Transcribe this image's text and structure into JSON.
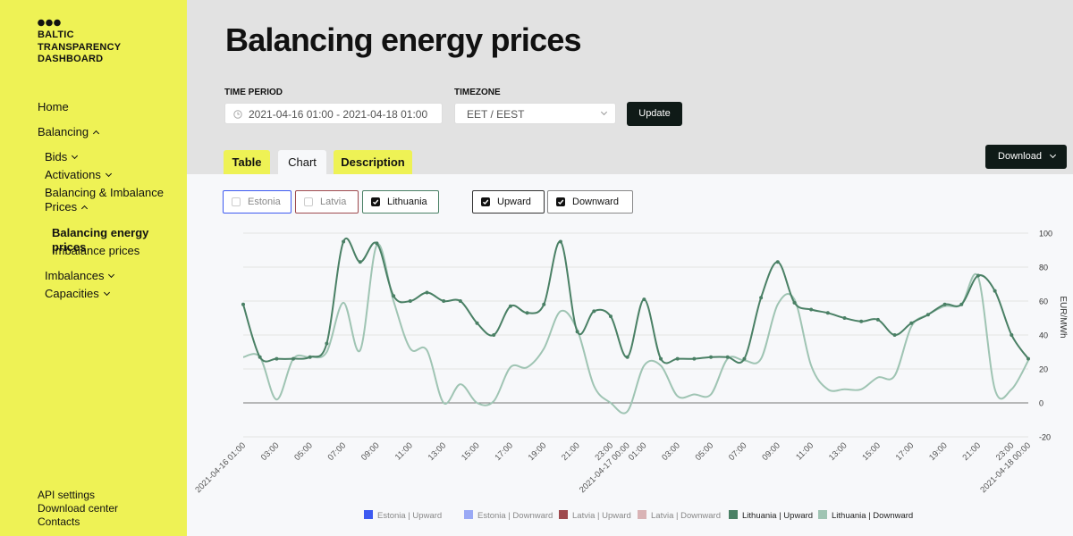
{
  "sidebar": {
    "logo": [
      "BALTIC",
      "TRANSPARENCY",
      "DASHBOARD"
    ],
    "nav": [
      {
        "label": "Home",
        "level": 0
      },
      {
        "label": "Balancing",
        "level": 0,
        "expanded": true
      },
      {
        "label": "Bids",
        "level": 1,
        "expanded": false
      },
      {
        "label": "Activations",
        "level": 1,
        "expanded": false
      },
      {
        "label": "Balancing & Imbalance Prices",
        "level": 1,
        "expanded": true
      },
      {
        "label": "Balancing energy prices",
        "level": 2,
        "active": true
      },
      {
        "label": "Imbalance prices",
        "level": 2
      },
      {
        "label": "Imbalances",
        "level": 1,
        "expanded": false
      },
      {
        "label": "Capacities",
        "level": 1,
        "expanded": false
      }
    ],
    "footer": [
      "API settings",
      "Download center",
      "Contacts"
    ]
  },
  "header": {
    "title": "Balancing energy prices"
  },
  "filters": {
    "time_period_label": "TIME PERIOD",
    "time_period": "2021-04-16 01:00 - 2021-04-18 01:00",
    "timezone_label": "TIMEZONE",
    "timezone": "EET / EEST",
    "update": "Update"
  },
  "tabs": [
    {
      "label": "Table",
      "active": false
    },
    {
      "label": "Chart",
      "active": true
    },
    {
      "label": "Description",
      "active": false
    }
  ],
  "download": "Download",
  "toggles": {
    "countries": [
      {
        "label": "Estonia",
        "checked": false,
        "color": "#3d5af1"
      },
      {
        "label": "Latvia",
        "checked": false,
        "color": "#9e4a4e"
      },
      {
        "label": "Lithuania",
        "checked": true,
        "color": "#4a8065"
      }
    ],
    "directions": [
      {
        "label": "Upward",
        "checked": true,
        "color": "#333333"
      },
      {
        "label": "Downward",
        "checked": true,
        "color": "#888888"
      }
    ]
  },
  "chart_data": {
    "type": "line",
    "categories": [
      "2021-04-16 01:00",
      null,
      "03:00",
      null,
      "05:00",
      null,
      "07:00",
      null,
      "09:00",
      null,
      "11:00",
      null,
      "13:00",
      null,
      "15:00",
      null,
      "17:00",
      null,
      "19:00",
      null,
      "21:00",
      null,
      "23:00",
      "2021-04-17 00:00",
      "01:00",
      null,
      "03:00",
      null,
      "05:00",
      null,
      "07:00",
      null,
      "09:00",
      null,
      "11:00",
      null,
      "13:00",
      null,
      "15:00",
      null,
      "17:00",
      null,
      "19:00",
      null,
      "21:00",
      null,
      "23:00",
      "2021-04-18 00:00"
    ],
    "y_label": "EUR/MWh",
    "ylim": [
      -20,
      100
    ],
    "yticks": [
      -20,
      0,
      20,
      40,
      60,
      80,
      100
    ],
    "grid": true,
    "series": [
      {
        "name": "Estonia | Upward",
        "color": "#3d5af1"
      },
      {
        "name": "Estonia | Downward",
        "color": "#9aa9f5"
      },
      {
        "name": "Latvia | Upward",
        "color": "#9e4a4e"
      },
      {
        "name": "Latvia | Downward",
        "color": "#d9b3b5"
      },
      {
        "name": "Lithuania | Upward",
        "color": "#4a8065",
        "markers": true,
        "values": [
          58,
          27,
          26,
          26,
          27,
          35,
          95,
          83,
          94,
          63,
          60,
          65,
          60,
          60,
          47,
          40,
          57,
          53,
          58,
          95,
          42,
          54,
          51,
          27,
          61,
          26,
          26,
          26,
          27,
          27,
          26,
          62,
          83,
          59,
          55,
          53,
          50,
          48,
          49,
          40,
          47,
          52,
          58,
          58,
          75,
          66,
          40,
          26
        ]
      },
      {
        "name": "Lithuania | Downward",
        "color": "#9fc4b3",
        "markers": false,
        "values": [
          27,
          27,
          2,
          26,
          27,
          30,
          59,
          31,
          93,
          60,
          32,
          31,
          0,
          11,
          0,
          1,
          21,
          21,
          32,
          54,
          43,
          10,
          0,
          -5,
          22,
          22,
          4,
          5,
          5,
          26,
          25,
          26,
          58,
          61,
          22,
          8,
          8,
          8,
          15,
          16,
          45,
          52,
          57,
          58,
          74,
          8,
          8,
          25
        ]
      }
    ]
  }
}
